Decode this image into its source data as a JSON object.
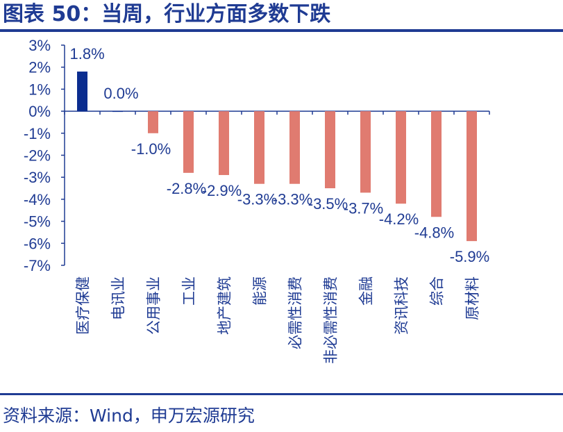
{
  "title": "图表 50：当周，行业方面多数下跌",
  "source": "资料来源：Wind，申万宏源研究",
  "colors": {
    "positive": "#0b2d8f",
    "negative": "#e07b70",
    "text": "#1f3b93"
  },
  "chart_data": {
    "type": "bar",
    "categories": [
      "医疗保健",
      "电讯业",
      "公用事业",
      "工业",
      "地产建筑",
      "能源",
      "必需性消费",
      "非必需性消费",
      "金融",
      "资讯科技",
      "综合",
      "原材料"
    ],
    "values": [
      1.8,
      0.0,
      -1.0,
      -2.8,
      -2.9,
      -3.3,
      -3.3,
      -3.5,
      -3.7,
      -4.2,
      -4.8,
      -5.9
    ],
    "data_labels": [
      "1.8%",
      "0.0%",
      "-1.0%",
      "-2.8%",
      "-2.9%",
      "-3.3%",
      "-3.3%",
      "-3.5%",
      "-3.7%",
      "-4.2%",
      "-4.8%",
      "-5.9%"
    ],
    "yticks": [
      3,
      2,
      1,
      0,
      -1,
      -2,
      -3,
      -4,
      -5,
      -6,
      -7
    ],
    "ytick_labels": [
      "3%",
      "2%",
      "1%",
      "0%",
      "-1%",
      "-2%",
      "-3%",
      "-4%",
      "-5%",
      "-6%",
      "-7%"
    ],
    "ylim": [
      -7,
      3
    ],
    "grid": false,
    "legend": false
  }
}
